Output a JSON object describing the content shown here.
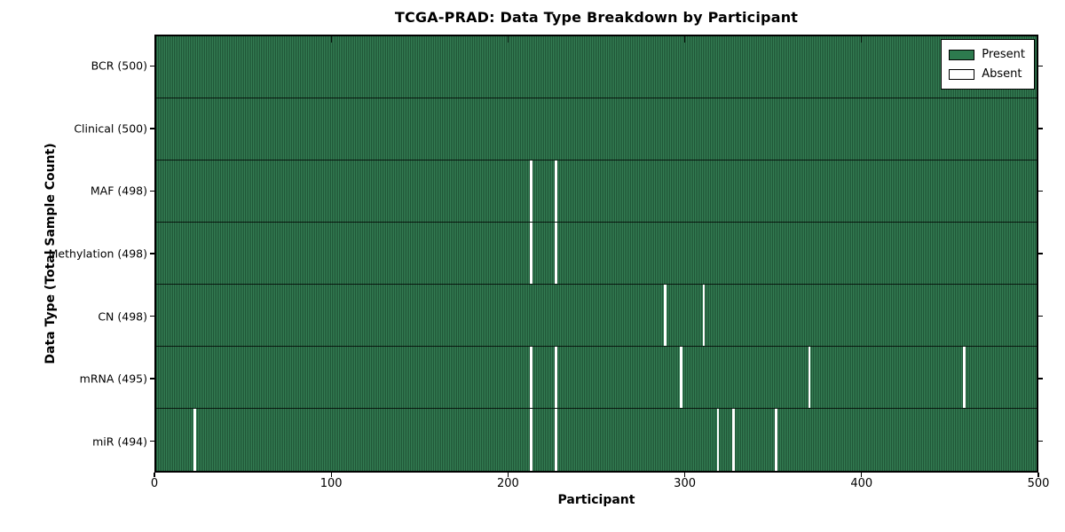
{
  "title": "TCGA-PRAD: Data Type Breakdown by Participant",
  "chart_data": {
    "type": "heatmap",
    "title": "TCGA-PRAD: Data Type Breakdown by Participant",
    "xlabel": "Participant",
    "ylabel": "Data Type (Total Sample Count)",
    "xlim": [
      0,
      500
    ],
    "x_ticks": [
      0,
      100,
      200,
      300,
      400,
      500
    ],
    "grid": false,
    "legend_position": "upper right",
    "legend": [
      {
        "label": "Present",
        "color": "#2d7a4e"
      },
      {
        "label": "Absent",
        "color": "#ffffff"
      }
    ],
    "present_color": "#2d7a4e",
    "absent_color": "#ffffff",
    "rows": [
      {
        "key": "bcr",
        "label": "BCR (500)",
        "data_type": "BCR",
        "present_count": 500,
        "absent_participants": []
      },
      {
        "key": "clinical",
        "label": "Clinical (500)",
        "data_type": "Clinical",
        "present_count": 500,
        "absent_participants": []
      },
      {
        "key": "maf",
        "label": "MAF (498)",
        "data_type": "MAF",
        "present_count": 498,
        "absent_participants": [
          213,
          227
        ]
      },
      {
        "key": "methylation",
        "label": "Methylation (498)",
        "data_type": "Methylation",
        "present_count": 498,
        "absent_participants": [
          213,
          227
        ]
      },
      {
        "key": "cn",
        "label": "CN (498)",
        "data_type": "CN",
        "present_count": 498,
        "absent_participants": [
          289,
          311
        ]
      },
      {
        "key": "mrna",
        "label": "mRNA (495)",
        "data_type": "mRNA",
        "present_count": 495,
        "absent_participants": [
          213,
          227,
          298,
          371,
          459
        ]
      },
      {
        "key": "mir",
        "label": "miR (494)",
        "data_type": "miR",
        "present_count": 494,
        "absent_participants": [
          22,
          213,
          227,
          319,
          328,
          352
        ]
      }
    ]
  }
}
